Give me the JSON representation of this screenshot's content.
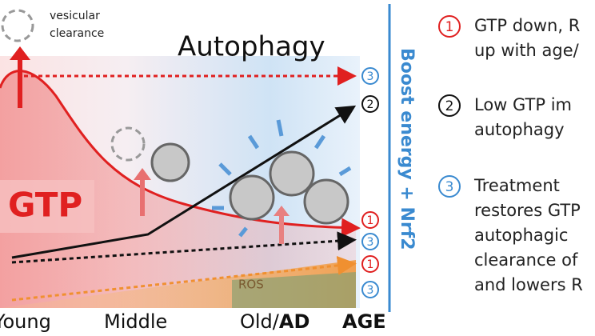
{
  "figure": {
    "vesicle_label": "vesicular clearance",
    "process_title": "Autophagy",
    "gtp_label": "GTP",
    "ros_label": "ROS",
    "treatment_label": "Boost energy + Nrf2",
    "x_labels": {
      "young": "Young",
      "middle": "Middle",
      "old": "Old/",
      "ad": "AD",
      "axis": "AGE"
    },
    "markers": [
      "3",
      "2",
      "1",
      "3",
      "1",
      "3"
    ]
  },
  "legend": [
    {
      "number": "1",
      "lines": [
        "GTP down, R",
        "up with age/"
      ]
    },
    {
      "number": "2",
      "lines": [
        "Low GTP im",
        "autophagy"
      ]
    },
    {
      "number": "3",
      "lines": [
        "Treatment",
        "restores GTP",
        "autophagic",
        "clearance of",
        "and lowers R"
      ]
    }
  ]
}
